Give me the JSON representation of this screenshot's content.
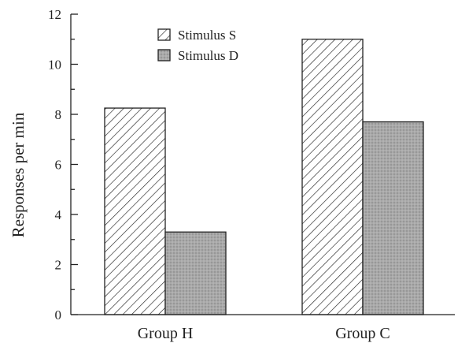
{
  "chart_data": {
    "type": "bar",
    "categories": [
      "Group H",
      "Group C"
    ],
    "series": [
      {
        "name": "Stimulus S",
        "values": [
          8.25,
          11.0
        ],
        "pattern": "hatch"
      },
      {
        "name": "Stimulus D",
        "values": [
          3.3,
          7.7
        ],
        "pattern": "gray-stipple"
      }
    ],
    "title": "",
    "xlabel": "",
    "ylabel": "Responses per min",
    "ylim": [
      0,
      12
    ],
    "yticks": [
      0,
      2,
      4,
      6,
      8,
      10,
      12
    ],
    "legend_position": "top-center",
    "grid": false,
    "colors": {
      "axis": "#222222",
      "hatch_fill": "#ffffff",
      "gray_fill": "#a9a9a9"
    }
  }
}
